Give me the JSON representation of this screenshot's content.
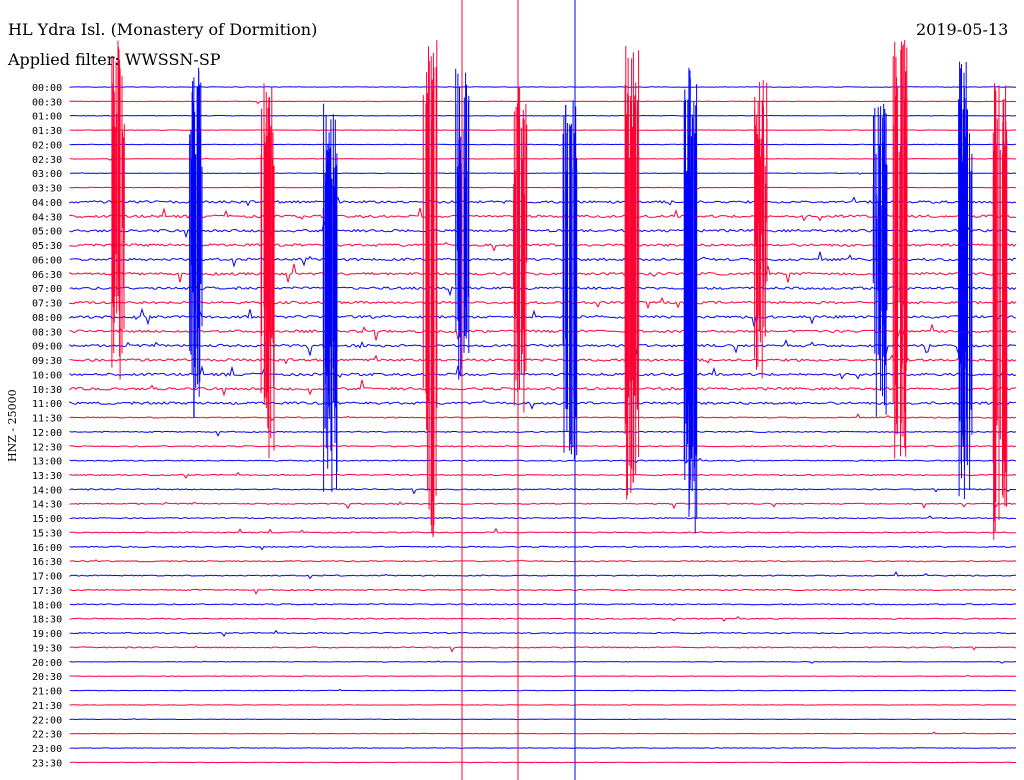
{
  "header": {
    "station": "HL Ydra Isl. (Monastery of Dormition)",
    "date": "2019-05-13",
    "filter": "Applied filter: WWSSN-SP"
  },
  "side_label": "HNZ - 25000",
  "colors": {
    "line_a": "#0000ff",
    "line_b": "#ff0033",
    "text": "#000000"
  },
  "chart_data": {
    "type": "line",
    "title": "HL Ydra Isl. (Monastery of Dormition)",
    "subtitle": "Applied filter: WWSSN-SP",
    "ylabel": "HNZ - 25000",
    "row_labels": [
      "00:00",
      "00:30",
      "01:00",
      "01:30",
      "02:00",
      "02:30",
      "03:00",
      "03:30",
      "04:00",
      "04:30",
      "05:00",
      "05:30",
      "06:00",
      "06:30",
      "07:00",
      "07:30",
      "08:00",
      "08:30",
      "09:00",
      "09:30",
      "10:00",
      "10:30",
      "11:00",
      "11:30",
      "12:00",
      "12:30",
      "13:00",
      "13:30",
      "14:00",
      "14:30",
      "15:00",
      "15:30",
      "16:00",
      "16:30",
      "17:00",
      "17:30",
      "18:00",
      "18:30",
      "19:00",
      "19:30",
      "20:00",
      "20:30",
      "21:00",
      "21:30",
      "22:00",
      "22:30",
      "23:00",
      "23:30"
    ],
    "row_colors": [
      "line_a",
      "line_b"
    ],
    "description": "Helicorder record; 48 half-hour traces alternating blue/red"
  }
}
